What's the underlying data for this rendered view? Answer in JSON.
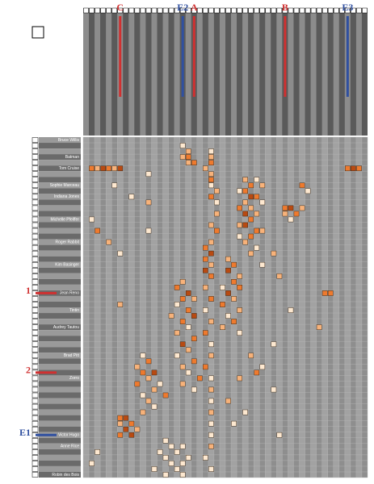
{
  "matrix": {
    "row_labels": [
      "Bruce Willis",
      null,
      null,
      "Batman",
      null,
      "Tom Cruise",
      null,
      null,
      "Sophie Marceau",
      null,
      "Indiana Jones",
      null,
      null,
      null,
      "Michelle Pfeiffer",
      null,
      null,
      null,
      "Roger Rabbit",
      null,
      null,
      null,
      "Kim Basinger",
      null,
      null,
      null,
      null,
      "Jean Reno",
      null,
      null,
      "Tintin",
      null,
      null,
      "Audrey Tautou",
      null,
      null,
      null,
      null,
      "Brad Pitt",
      null,
      null,
      null,
      "Zorro",
      null,
      null,
      null,
      null,
      null,
      null,
      null,
      null,
      null,
      "Victor Hugo",
      null,
      "Anne Rice",
      null,
      null,
      null,
      null,
      "Robin des Bois"
    ],
    "column_labels": [
      null,
      null,
      null,
      null,
      null,
      null,
      null,
      null,
      null,
      null,
      null,
      null,
      null,
      null,
      null,
      null,
      null,
      null,
      null,
      null,
      null,
      null,
      null,
      null,
      null,
      null,
      null,
      null,
      null,
      null,
      null,
      null,
      null,
      null,
      null,
      null,
      null,
      null,
      null,
      null,
      null,
      null,
      null,
      null,
      null,
      null,
      null,
      null,
      null,
      null
    ],
    "level_colors": [
      "#fde8d0",
      "#f7b27a",
      "#ee7a2e",
      "#b84a12"
    ],
    "cells": [
      [
        2,
        22,
        1
      ],
      [
        3,
        22,
        2
      ],
      [
        4,
        22,
        3
      ],
      [
        6,
        22,
        2
      ],
      [
        7,
        22,
        3
      ],
      [
        8,
        22,
        1
      ],
      [
        9,
        23,
        2
      ],
      [
        10,
        22,
        3
      ],
      [
        11,
        23,
        1
      ],
      [
        13,
        23,
        2
      ],
      [
        15,
        22,
        2
      ],
      [
        16,
        23,
        3
      ],
      [
        18,
        22,
        2
      ],
      [
        19,
        21,
        3
      ],
      [
        20,
        22,
        4
      ],
      [
        21,
        21,
        3
      ],
      [
        22,
        22,
        2
      ],
      [
        23,
        21,
        4
      ],
      [
        24,
        22,
        3
      ],
      [
        26,
        21,
        2
      ],
      [
        28,
        22,
        3
      ],
      [
        30,
        21,
        1
      ],
      [
        32,
        22,
        2
      ],
      [
        34,
        21,
        3
      ],
      [
        36,
        22,
        1
      ],
      [
        38,
        22,
        2
      ],
      [
        40,
        21,
        3
      ],
      [
        42,
        22,
        1
      ],
      [
        44,
        22,
        2
      ],
      [
        46,
        22,
        1
      ],
      [
        48,
        22,
        2
      ],
      [
        50,
        22,
        1
      ],
      [
        52,
        22,
        1
      ],
      [
        54,
        22,
        2
      ],
      [
        56,
        21,
        1
      ],
      [
        58,
        22,
        1
      ],
      [
        5,
        1,
        3
      ],
      [
        5,
        2,
        2
      ],
      [
        5,
        3,
        4
      ],
      [
        5,
        4,
        3
      ],
      [
        5,
        5,
        2
      ],
      [
        5,
        6,
        4
      ],
      [
        5,
        46,
        3
      ],
      [
        5,
        47,
        4
      ],
      [
        5,
        48,
        3
      ],
      [
        5,
        21,
        2
      ],
      [
        3,
        17,
        2
      ],
      [
        3,
        18,
        3
      ],
      [
        4,
        18,
        2
      ],
      [
        4,
        19,
        3
      ],
      [
        7,
        28,
        2
      ],
      [
        7,
        30,
        1
      ],
      [
        8,
        29,
        3
      ],
      [
        8,
        31,
        2
      ],
      [
        9,
        27,
        1
      ],
      [
        9,
        28,
        3
      ],
      [
        10,
        29,
        4
      ],
      [
        10,
        30,
        3
      ],
      [
        11,
        28,
        2
      ],
      [
        11,
        31,
        1
      ],
      [
        12,
        27,
        3
      ],
      [
        12,
        29,
        2
      ],
      [
        13,
        28,
        4
      ],
      [
        13,
        30,
        2
      ],
      [
        14,
        29,
        3
      ],
      [
        15,
        27,
        2
      ],
      [
        15,
        28,
        4
      ],
      [
        16,
        30,
        3
      ],
      [
        16,
        31,
        2
      ],
      [
        17,
        27,
        1
      ],
      [
        17,
        29,
        3
      ],
      [
        18,
        28,
        2
      ],
      [
        19,
        30,
        1
      ],
      [
        20,
        29,
        2
      ],
      [
        12,
        35,
        3
      ],
      [
        12,
        36,
        4
      ],
      [
        13,
        35,
        2
      ],
      [
        13,
        37,
        3
      ],
      [
        14,
        36,
        1
      ],
      [
        12,
        38,
        2
      ],
      [
        21,
        25,
        2
      ],
      [
        22,
        26,
        3
      ],
      [
        23,
        25,
        4
      ],
      [
        24,
        27,
        2
      ],
      [
        25,
        26,
        3
      ],
      [
        26,
        24,
        1
      ],
      [
        26,
        27,
        3
      ],
      [
        27,
        25,
        4
      ],
      [
        28,
        26,
        2
      ],
      [
        29,
        24,
        3
      ],
      [
        30,
        27,
        2
      ],
      [
        31,
        25,
        1
      ],
      [
        32,
        26,
        3
      ],
      [
        33,
        24,
        2
      ],
      [
        34,
        27,
        1
      ],
      [
        25,
        17,
        2
      ],
      [
        26,
        16,
        3
      ],
      [
        27,
        18,
        4
      ],
      [
        28,
        17,
        3
      ],
      [
        28,
        19,
        2
      ],
      [
        29,
        16,
        1
      ],
      [
        30,
        18,
        3
      ],
      [
        31,
        15,
        2
      ],
      [
        31,
        19,
        4
      ],
      [
        32,
        17,
        3
      ],
      [
        33,
        18,
        1
      ],
      [
        34,
        16,
        2
      ],
      [
        35,
        19,
        3
      ],
      [
        36,
        17,
        4
      ],
      [
        37,
        18,
        2
      ],
      [
        38,
        16,
        1
      ],
      [
        39,
        19,
        3
      ],
      [
        40,
        17,
        2
      ],
      [
        41,
        18,
        1
      ],
      [
        42,
        20,
        3
      ],
      [
        43,
        17,
        2
      ],
      [
        44,
        19,
        1
      ],
      [
        38,
        10,
        1
      ],
      [
        39,
        11,
        3
      ],
      [
        40,
        9,
        2
      ],
      [
        41,
        12,
        4
      ],
      [
        41,
        10,
        3
      ],
      [
        42,
        11,
        2
      ],
      [
        43,
        13,
        1
      ],
      [
        43,
        9,
        3
      ],
      [
        44,
        12,
        2
      ],
      [
        45,
        10,
        1
      ],
      [
        45,
        14,
        3
      ],
      [
        46,
        11,
        2
      ],
      [
        47,
        12,
        1
      ],
      [
        48,
        10,
        2
      ],
      [
        49,
        6,
        3
      ],
      [
        49,
        7,
        4
      ],
      [
        50,
        6,
        2
      ],
      [
        50,
        8,
        3
      ],
      [
        51,
        7,
        4
      ],
      [
        51,
        9,
        2
      ],
      [
        52,
        6,
        3
      ],
      [
        52,
        8,
        4
      ],
      [
        53,
        14,
        1
      ],
      [
        54,
        15,
        1
      ],
      [
        54,
        17,
        1
      ],
      [
        55,
        13,
        1
      ],
      [
        55,
        16,
        1
      ],
      [
        56,
        14,
        1
      ],
      [
        56,
        18,
        1
      ],
      [
        57,
        15,
        1
      ],
      [
        57,
        17,
        1
      ],
      [
        58,
        12,
        1
      ],
      [
        58,
        16,
        1
      ],
      [
        59,
        14,
        1
      ],
      [
        59,
        17,
        1
      ],
      [
        1,
        17,
        1
      ],
      [
        2,
        18,
        2
      ],
      [
        6,
        11,
        1
      ],
      [
        8,
        5,
        1
      ],
      [
        10,
        8,
        1
      ],
      [
        11,
        11,
        2
      ],
      [
        14,
        1,
        1
      ],
      [
        16,
        2,
        3
      ],
      [
        16,
        11,
        1
      ],
      [
        18,
        4,
        2
      ],
      [
        20,
        6,
        1
      ],
      [
        24,
        34,
        2
      ],
      [
        27,
        42,
        3
      ],
      [
        27,
        43,
        3
      ],
      [
        29,
        6,
        2
      ],
      [
        30,
        36,
        1
      ],
      [
        33,
        41,
        2
      ],
      [
        36,
        33,
        1
      ],
      [
        38,
        29,
        2
      ],
      [
        40,
        31,
        1
      ],
      [
        41,
        30,
        3
      ],
      [
        42,
        27,
        2
      ],
      [
        44,
        33,
        1
      ],
      [
        46,
        25,
        2
      ],
      [
        48,
        28,
        1
      ],
      [
        50,
        26,
        1
      ],
      [
        52,
        34,
        1
      ],
      [
        55,
        2,
        1
      ],
      [
        57,
        1,
        1
      ],
      [
        9,
        39,
        1
      ],
      [
        8,
        38,
        3
      ],
      [
        20,
        33,
        2
      ],
      [
        22,
        31,
        1
      ]
    ],
    "column_annotations": [
      {
        "label": "C",
        "column": 6,
        "color": "#d03030"
      },
      {
        "label": "E2",
        "column": 17,
        "color": "#3050a0"
      },
      {
        "label": "A",
        "column": 19,
        "color": "#d03030"
      },
      {
        "label": "B",
        "column": 35,
        "color": "#d03030"
      },
      {
        "label": "E3",
        "column": 46,
        "color": "#3050a0"
      }
    ],
    "row_annotations": [
      {
        "label": "1",
        "row": 27,
        "color": "#d03030"
      },
      {
        "label": "2",
        "row": 41,
        "color": "#d03030"
      },
      {
        "label": "E1",
        "row": 52,
        "color": "#3050a0"
      }
    ]
  }
}
